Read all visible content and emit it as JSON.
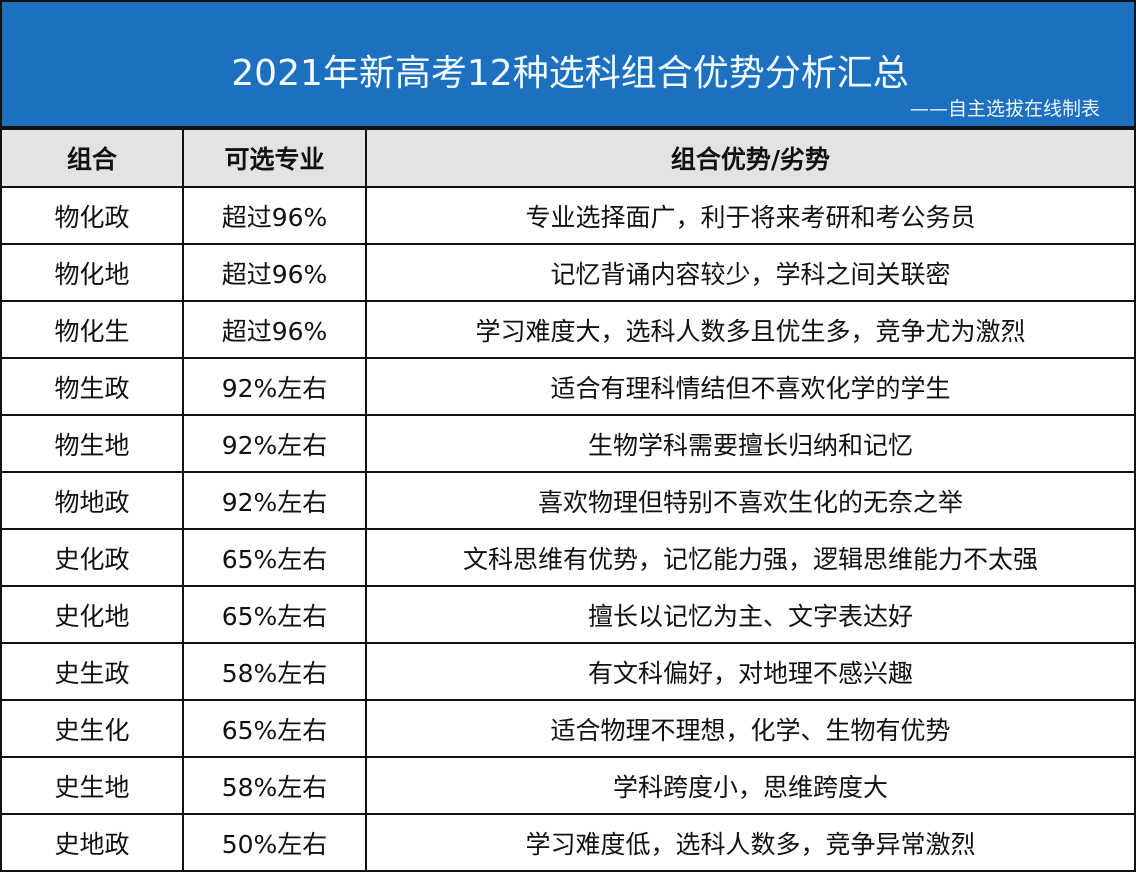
{
  "header": {
    "title": "2021年新高考12种选科组合优势分析汇总",
    "subtitle": "——自主选拔在线制表",
    "bg_color": "#1d6fbf"
  },
  "table": {
    "columns": [
      "组合",
      "可选专业",
      "组合优势/劣势"
    ],
    "rows": [
      [
        "物化政",
        "超过96%",
        "专业选择面广，利于将来考研和考公务员"
      ],
      [
        "物化地",
        "超过96%",
        "记忆背诵内容较少，学科之间关联密"
      ],
      [
        "物化生",
        "超过96%",
        "学习难度大，选科人数多且优生多，竞争尤为激烈"
      ],
      [
        "物生政",
        "92%左右",
        "适合有理科情结但不喜欢化学的学生"
      ],
      [
        "物生地",
        "92%左右",
        "生物学科需要擅长归纳和记忆"
      ],
      [
        "物地政",
        "92%左右",
        "喜欢物理但特别不喜欢生化的无奈之举"
      ],
      [
        "史化政",
        "65%左右",
        "文科思维有优势，记忆能力强，逻辑思维能力不太强"
      ],
      [
        "史化地",
        "65%左右",
        "擅长以记忆为主、文字表达好"
      ],
      [
        "史生政",
        "58%左右",
        "有文科偏好，对地理不感兴趣"
      ],
      [
        "史生化",
        "65%左右",
        "适合物理不理想，化学、生物有优势"
      ],
      [
        "史生地",
        "58%左右",
        "学科跨度小，思维跨度大"
      ],
      [
        "史地政",
        "50%左右",
        "学习难度低，选科人数多，竞争异常激烈"
      ]
    ]
  }
}
